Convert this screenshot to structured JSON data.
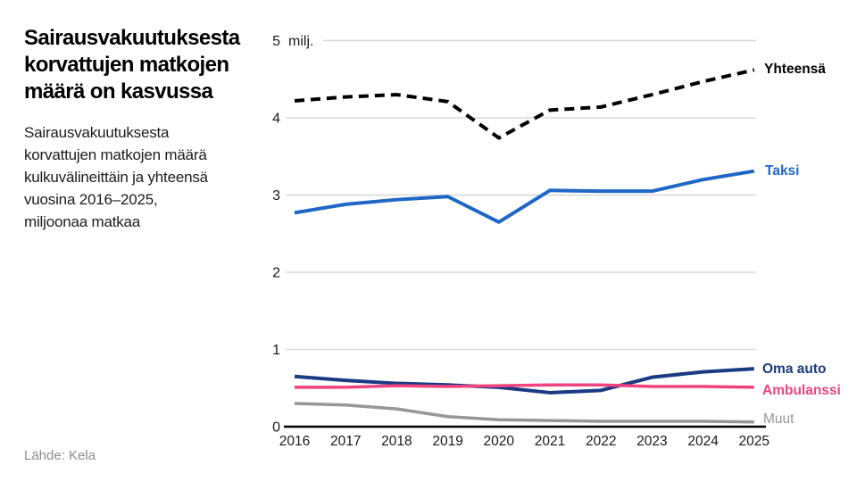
{
  "header": {
    "title": "Sairausvakuutuksesta\nkorvattujen matkojen\nmäärä on kasvussa",
    "subtitle": "Sairausvakuutuksesta\nkorvattujen matkojen määrä\nkulkuvälineittäin ja yhteensä\nvuosina 2016–2025,\nmiljoonaa matkaa",
    "source": "Lähde: Kela"
  },
  "chart_data": {
    "type": "line",
    "title": "Sairausvakuutuksesta korvattujen matkojen määrä on kasvussa",
    "unit_label": "milj.",
    "x": [
      2016,
      2017,
      2018,
      2019,
      2020,
      2021,
      2022,
      2023,
      2024,
      2025
    ],
    "xlabel": "",
    "ylabel": "milj.",
    "ylim": [
      0,
      5
    ],
    "yticks": [
      0,
      1,
      2,
      3,
      4,
      5
    ],
    "grid": true,
    "legend_position": "right-of-line-ends",
    "series": [
      {
        "name": "Yhteensä",
        "style": "dashed",
        "color": "#000000",
        "values": [
          4.22,
          4.27,
          4.3,
          4.21,
          3.74,
          4.1,
          4.14,
          4.3,
          4.47,
          4.62
        ]
      },
      {
        "name": "Taksi",
        "style": "solid",
        "color": "#1f67c6",
        "values": [
          2.77,
          2.88,
          2.94,
          2.98,
          2.65,
          3.06,
          3.05,
          3.05,
          3.2,
          3.31
        ]
      },
      {
        "name": "Oma auto",
        "style": "solid",
        "color": "#1a3a84",
        "values": [
          0.65,
          0.6,
          0.56,
          0.54,
          0.51,
          0.44,
          0.47,
          0.64,
          0.71,
          0.75
        ]
      },
      {
        "name": "Ambulanssi",
        "style": "solid",
        "color": "#f0437f",
        "values": [
          0.51,
          0.51,
          0.53,
          0.52,
          0.53,
          0.54,
          0.54,
          0.52,
          0.52,
          0.51
        ]
      },
      {
        "name": "Muut",
        "style": "solid",
        "color": "#969696",
        "values": [
          0.3,
          0.28,
          0.23,
          0.13,
          0.09,
          0.08,
          0.07,
          0.07,
          0.07,
          0.06
        ]
      }
    ]
  }
}
